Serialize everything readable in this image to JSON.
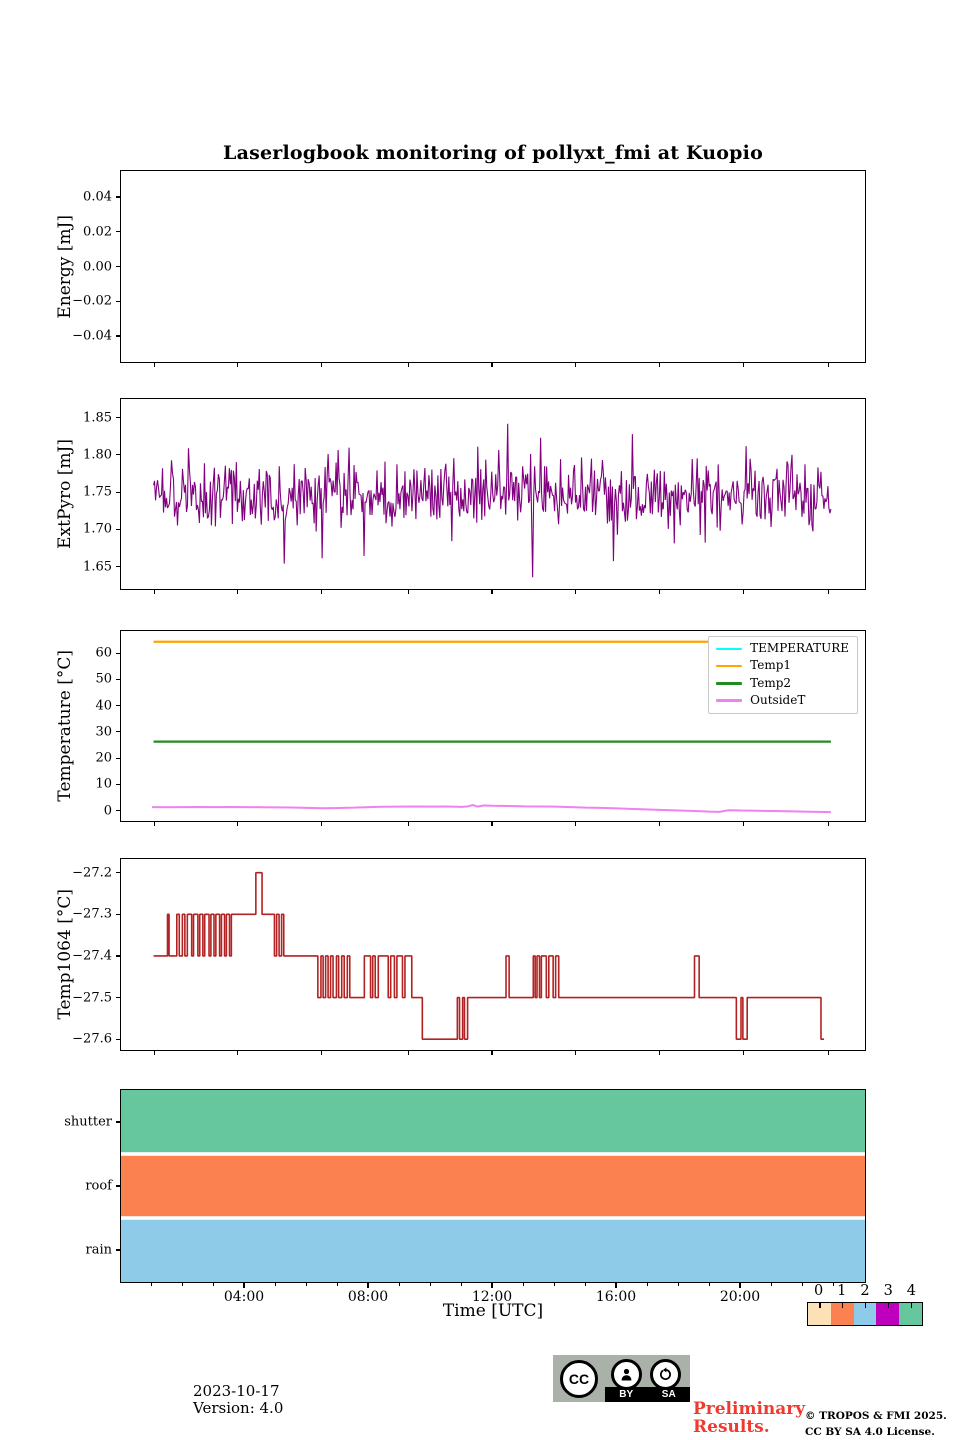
{
  "title": "Laserlogbook monitoring of pollyxt_fmi at Kuopio",
  "xlabel": "Time [UTC]",
  "footer": {
    "date": "2023-10-17",
    "version": "Version: 4.0",
    "preliminary_line1": "Preliminary",
    "preliminary_line2": "Results.",
    "copyright_line1": "© TROPOS & FMI 2025.",
    "copyright_line2": "CC BY SA 4.0 License.",
    "cc_badge": {
      "cc": "CC",
      "by": "BY",
      "sa": "SA"
    }
  },
  "colors": {
    "background": "#ffffff",
    "spine": "#000000",
    "preliminary_red": "#ef3b2f",
    "badge_gray": "#a9b1a8"
  },
  "axis": {
    "xlim": [
      0,
      24
    ],
    "x_major_tick_values": [
      4,
      8,
      12,
      16,
      20
    ],
    "x_tick_labels": [
      "04:00",
      "08:00",
      "12:00",
      "16:00",
      "20:00"
    ],
    "x_unlabeled_tick_values": [
      1.1,
      3.8,
      6.5,
      9.3,
      12.0,
      14.7,
      17.4,
      20.1,
      22.85
    ],
    "x_minor_tick_step_hours": 1
  },
  "chart_data": [
    {
      "id": "energy",
      "type": "line",
      "ylabel": "Energy [mJ]",
      "ylim": [
        -0.055,
        0.055
      ],
      "yticks": [
        [
          0.04,
          "0.04"
        ],
        [
          0.02,
          "0.02"
        ],
        [
          0.0,
          "0.00"
        ],
        [
          -0.02,
          "−0.02"
        ],
        [
          -0.04,
          "−0.04"
        ]
      ],
      "series": []
    },
    {
      "id": "extpyro",
      "type": "line",
      "ylabel": "ExtPyro [mJ]",
      "ylim": [
        1.62,
        1.875
      ],
      "yticks": [
        [
          1.85,
          "1.85"
        ],
        [
          1.8,
          "1.80"
        ],
        [
          1.75,
          "1.75"
        ],
        [
          1.7,
          "1.70"
        ],
        [
          1.65,
          "1.65"
        ]
      ],
      "color": "#800080",
      "noise": {
        "mean": 1.748,
        "typ_dev": 0.022,
        "min": 1.63,
        "max": 1.862,
        "x_start": 1.05,
        "x_end": 22.9,
        "n": 680,
        "seed": 20231017
      }
    },
    {
      "id": "temperature",
      "type": "line",
      "ylabel": "Temperature [°C]",
      "ylim": [
        -4,
        68.5
      ],
      "yticks": [
        [
          60,
          "60"
        ],
        [
          50,
          "50"
        ],
        [
          40,
          "40"
        ],
        [
          30,
          "30"
        ],
        [
          20,
          "20"
        ],
        [
          10,
          "10"
        ],
        [
          0,
          "0"
        ]
      ],
      "legend": [
        {
          "label": "TEMPERATURE",
          "color": "#00ffff"
        },
        {
          "label": "Temp1",
          "color": "#ffa500"
        },
        {
          "label": "Temp2",
          "color": "#228b22"
        },
        {
          "label": "OutsideT",
          "color": "#ee82ee"
        }
      ],
      "series": [
        {
          "name": "TEMPERATURE",
          "color": "#00ffff",
          "visible_in_plot": false
        },
        {
          "name": "Temp1",
          "color": "#ffa500",
          "width": 2.2,
          "points": [
            [
              1.05,
              64.4
            ],
            [
              22.9,
              64.4
            ]
          ]
        },
        {
          "name": "Temp2",
          "color": "#228b22",
          "width": 2.2,
          "points": [
            [
              1.05,
              26.3
            ],
            [
              22.9,
              26.3
            ]
          ]
        },
        {
          "name": "OutsideT",
          "color": "#ee82ee",
          "width": 2,
          "points": [
            [
              1,
              1.3
            ],
            [
              1.5,
              1.25
            ],
            [
              2,
              1.3
            ],
            [
              2.5,
              1.35
            ],
            [
              3,
              1.3
            ],
            [
              3.5,
              1.35
            ],
            [
              4,
              1.3
            ],
            [
              4.5,
              1.25
            ],
            [
              5,
              1.2
            ],
            [
              5.5,
              1.15
            ],
            [
              6,
              1.0
            ],
            [
              6.5,
              0.85
            ],
            [
              7,
              0.95
            ],
            [
              7.5,
              1.1
            ],
            [
              8,
              1.3
            ],
            [
              8.5,
              1.45
            ],
            [
              9,
              1.5
            ],
            [
              9.5,
              1.55
            ],
            [
              10,
              1.5
            ],
            [
              10.5,
              1.55
            ],
            [
              11,
              1.4
            ],
            [
              11.2,
              1.6
            ],
            [
              11.35,
              2.1
            ],
            [
              11.5,
              1.5
            ],
            [
              11.7,
              1.9
            ],
            [
              12,
              1.8
            ],
            [
              12.5,
              1.7
            ],
            [
              13,
              1.6
            ],
            [
              13.5,
              1.55
            ],
            [
              14,
              1.5
            ],
            [
              14.5,
              1.3
            ],
            [
              15,
              1.1
            ],
            [
              15.5,
              1.0
            ],
            [
              16,
              0.8
            ],
            [
              16.5,
              0.6
            ],
            [
              17,
              0.4
            ],
            [
              17.5,
              0.2
            ],
            [
              18,
              0.0
            ],
            [
              18.5,
              -0.2
            ],
            [
              19,
              -0.4
            ],
            [
              19.3,
              -0.5
            ],
            [
              19.6,
              0.1
            ],
            [
              20,
              0.0
            ],
            [
              20.5,
              -0.1
            ],
            [
              21,
              -0.2
            ],
            [
              21.5,
              -0.3
            ],
            [
              22,
              -0.4
            ],
            [
              22.5,
              -0.5
            ],
            [
              22.9,
              -0.6
            ]
          ]
        }
      ]
    },
    {
      "id": "temp1064",
      "type": "step",
      "ylabel": "Temp1064 [°C]",
      "ylim": [
        -27.626,
        -27.167
      ],
      "yticks": [
        [
          -27.2,
          "−27.2"
        ],
        [
          -27.3,
          "−27.3"
        ],
        [
          -27.4,
          "−27.4"
        ],
        [
          -27.5,
          "−27.5"
        ],
        [
          -27.6,
          "−27.6"
        ]
      ],
      "color": "#b22222",
      "series": [
        {
          "name": "Temp1064",
          "color": "#b22222",
          "width": 1.6,
          "step": true,
          "points": [
            [
              1.05,
              -27.4
            ],
            [
              1.5,
              -27.3
            ],
            [
              1.55,
              -27.4
            ],
            [
              1.8,
              -27.3
            ],
            [
              1.88,
              -27.4
            ],
            [
              1.98,
              -27.3
            ],
            [
              2.06,
              -27.4
            ],
            [
              2.14,
              -27.3
            ],
            [
              2.28,
              -27.4
            ],
            [
              2.34,
              -27.3
            ],
            [
              2.48,
              -27.4
            ],
            [
              2.54,
              -27.3
            ],
            [
              2.64,
              -27.4
            ],
            [
              2.7,
              -27.3
            ],
            [
              2.84,
              -27.4
            ],
            [
              2.9,
              -27.3
            ],
            [
              3.0,
              -27.4
            ],
            [
              3.06,
              -27.3
            ],
            [
              3.18,
              -27.4
            ],
            [
              3.24,
              -27.3
            ],
            [
              3.34,
              -27.4
            ],
            [
              3.4,
              -27.3
            ],
            [
              3.5,
              -27.4
            ],
            [
              3.56,
              -27.3
            ],
            [
              4.35,
              -27.2
            ],
            [
              4.55,
              -27.3
            ],
            [
              4.95,
              -27.4
            ],
            [
              5.02,
              -27.3
            ],
            [
              5.1,
              -27.4
            ],
            [
              5.18,
              -27.3
            ],
            [
              5.25,
              -27.4
            ],
            [
              6.35,
              -27.5
            ],
            [
              6.45,
              -27.4
            ],
            [
              6.52,
              -27.5
            ],
            [
              6.6,
              -27.4
            ],
            [
              6.68,
              -27.5
            ],
            [
              6.76,
              -27.4
            ],
            [
              6.84,
              -27.5
            ],
            [
              6.95,
              -27.4
            ],
            [
              7.02,
              -27.5
            ],
            [
              7.12,
              -27.4
            ],
            [
              7.2,
              -27.5
            ],
            [
              7.3,
              -27.4
            ],
            [
              7.38,
              -27.5
            ],
            [
              7.85,
              -27.4
            ],
            [
              8.05,
              -27.5
            ],
            [
              8.12,
              -27.4
            ],
            [
              8.2,
              -27.5
            ],
            [
              8.3,
              -27.4
            ],
            [
              8.62,
              -27.5
            ],
            [
              8.7,
              -27.4
            ],
            [
              8.82,
              -27.5
            ],
            [
              8.9,
              -27.4
            ],
            [
              9.08,
              -27.5
            ],
            [
              9.16,
              -27.4
            ],
            [
              9.38,
              -27.5
            ],
            [
              9.72,
              -27.6
            ],
            [
              10.85,
              -27.5
            ],
            [
              10.92,
              -27.6
            ],
            [
              11.02,
              -27.5
            ],
            [
              11.08,
              -27.6
            ],
            [
              11.18,
              -27.5
            ],
            [
              12.42,
              -27.4
            ],
            [
              12.52,
              -27.5
            ],
            [
              13.3,
              -27.4
            ],
            [
              13.36,
              -27.5
            ],
            [
              13.42,
              -27.4
            ],
            [
              13.5,
              -27.5
            ],
            [
              13.56,
              -27.4
            ],
            [
              13.72,
              -27.5
            ],
            [
              13.8,
              -27.4
            ],
            [
              13.94,
              -27.5
            ],
            [
              14.02,
              -27.4
            ],
            [
              14.12,
              -27.5
            ],
            [
              18.5,
              -27.4
            ],
            [
              18.65,
              -27.5
            ],
            [
              19.85,
              -27.6
            ],
            [
              20.0,
              -27.5
            ],
            [
              20.06,
              -27.6
            ],
            [
              20.2,
              -27.5
            ],
            [
              22.58,
              -27.6
            ],
            [
              22.68,
              -27.6
            ]
          ]
        }
      ]
    },
    {
      "id": "status",
      "type": "bands",
      "categories": [
        "shutter",
        "roof",
        "rain"
      ],
      "values": [
        4,
        1,
        2
      ],
      "colorbar": {
        "ticks": [
          "0",
          "1",
          "2",
          "3",
          "4"
        ],
        "colors": [
          "#fbe1b5",
          "#fb8150",
          "#8ecbe8",
          "#be00be",
          "#66c79f"
        ]
      }
    }
  ]
}
